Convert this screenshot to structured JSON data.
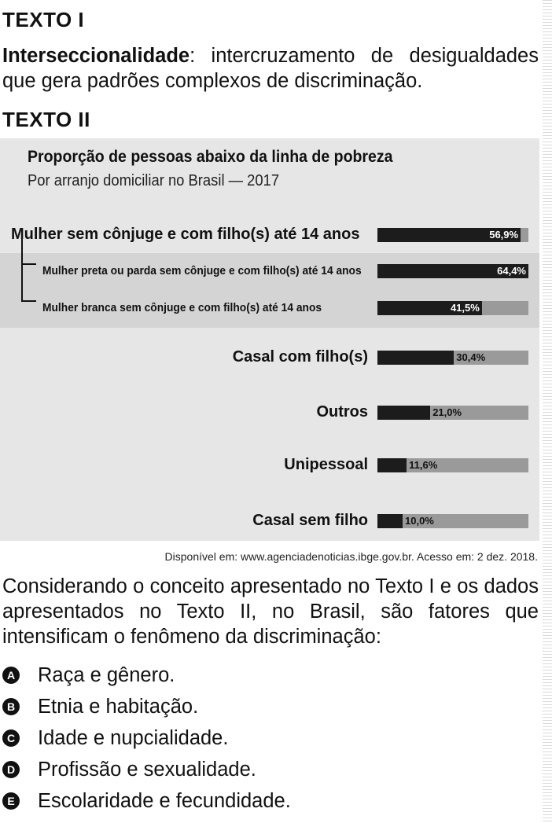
{
  "texto1": {
    "heading": "TEXTO I",
    "term": "Interseccionalidade",
    "definition": ": intercruzamento de desigualdades que gera padrões complexos de discriminação."
  },
  "texto2": {
    "heading": "TEXTO II"
  },
  "chart_data": {
    "type": "bar",
    "orientation": "horizontal",
    "title": "Proporção de pessoas abaixo da linha de pobreza",
    "subtitle": "Por arranjo domiciliar no Brasil — 2017",
    "unit": "%",
    "xlim": [
      0,
      100
    ],
    "colors": {
      "fill": "#1c1c1c",
      "track": "#9a9a9a",
      "panel": "#e6e6e6",
      "sub_panel": "#d4d4d4"
    },
    "categories": [
      "Mulher sem cônjuge e com filho(s) até 14 anos",
      "Mulher preta ou parda sem cônjuge e com filho(s) até 14 anos",
      "Mulher branca sem cônjuge e com filho(s) até 14 anos",
      "Casal com filho(s)",
      "Outros",
      "Unipessoal",
      "Casal sem filho"
    ],
    "values": [
      56.9,
      64.4,
      41.5,
      30.4,
      21.0,
      11.6,
      10.0
    ],
    "value_labels": [
      "56,9%",
      "64,4%",
      "41,5%",
      "30,4%",
      "21,0%",
      "11,6%",
      "10,0%"
    ]
  },
  "source": "Disponível em: www.agenciadenoticias.ibge.gov.br. Acesso em: 2 dez. 2018.",
  "question": "Considerando o conceito apresentado no Texto I e os dados apresentados no Texto II, no Brasil, são fatores que intensificam o fenômeno da discriminação:",
  "options": [
    {
      "letter": "A",
      "text": "Raça e gênero."
    },
    {
      "letter": "B",
      "text": "Etnia e habitação."
    },
    {
      "letter": "C",
      "text": "Idade e nupcialidade."
    },
    {
      "letter": "D",
      "text": "Profissão e sexualidade."
    },
    {
      "letter": "E",
      "text": "Escolaridade e fecundidade."
    }
  ]
}
